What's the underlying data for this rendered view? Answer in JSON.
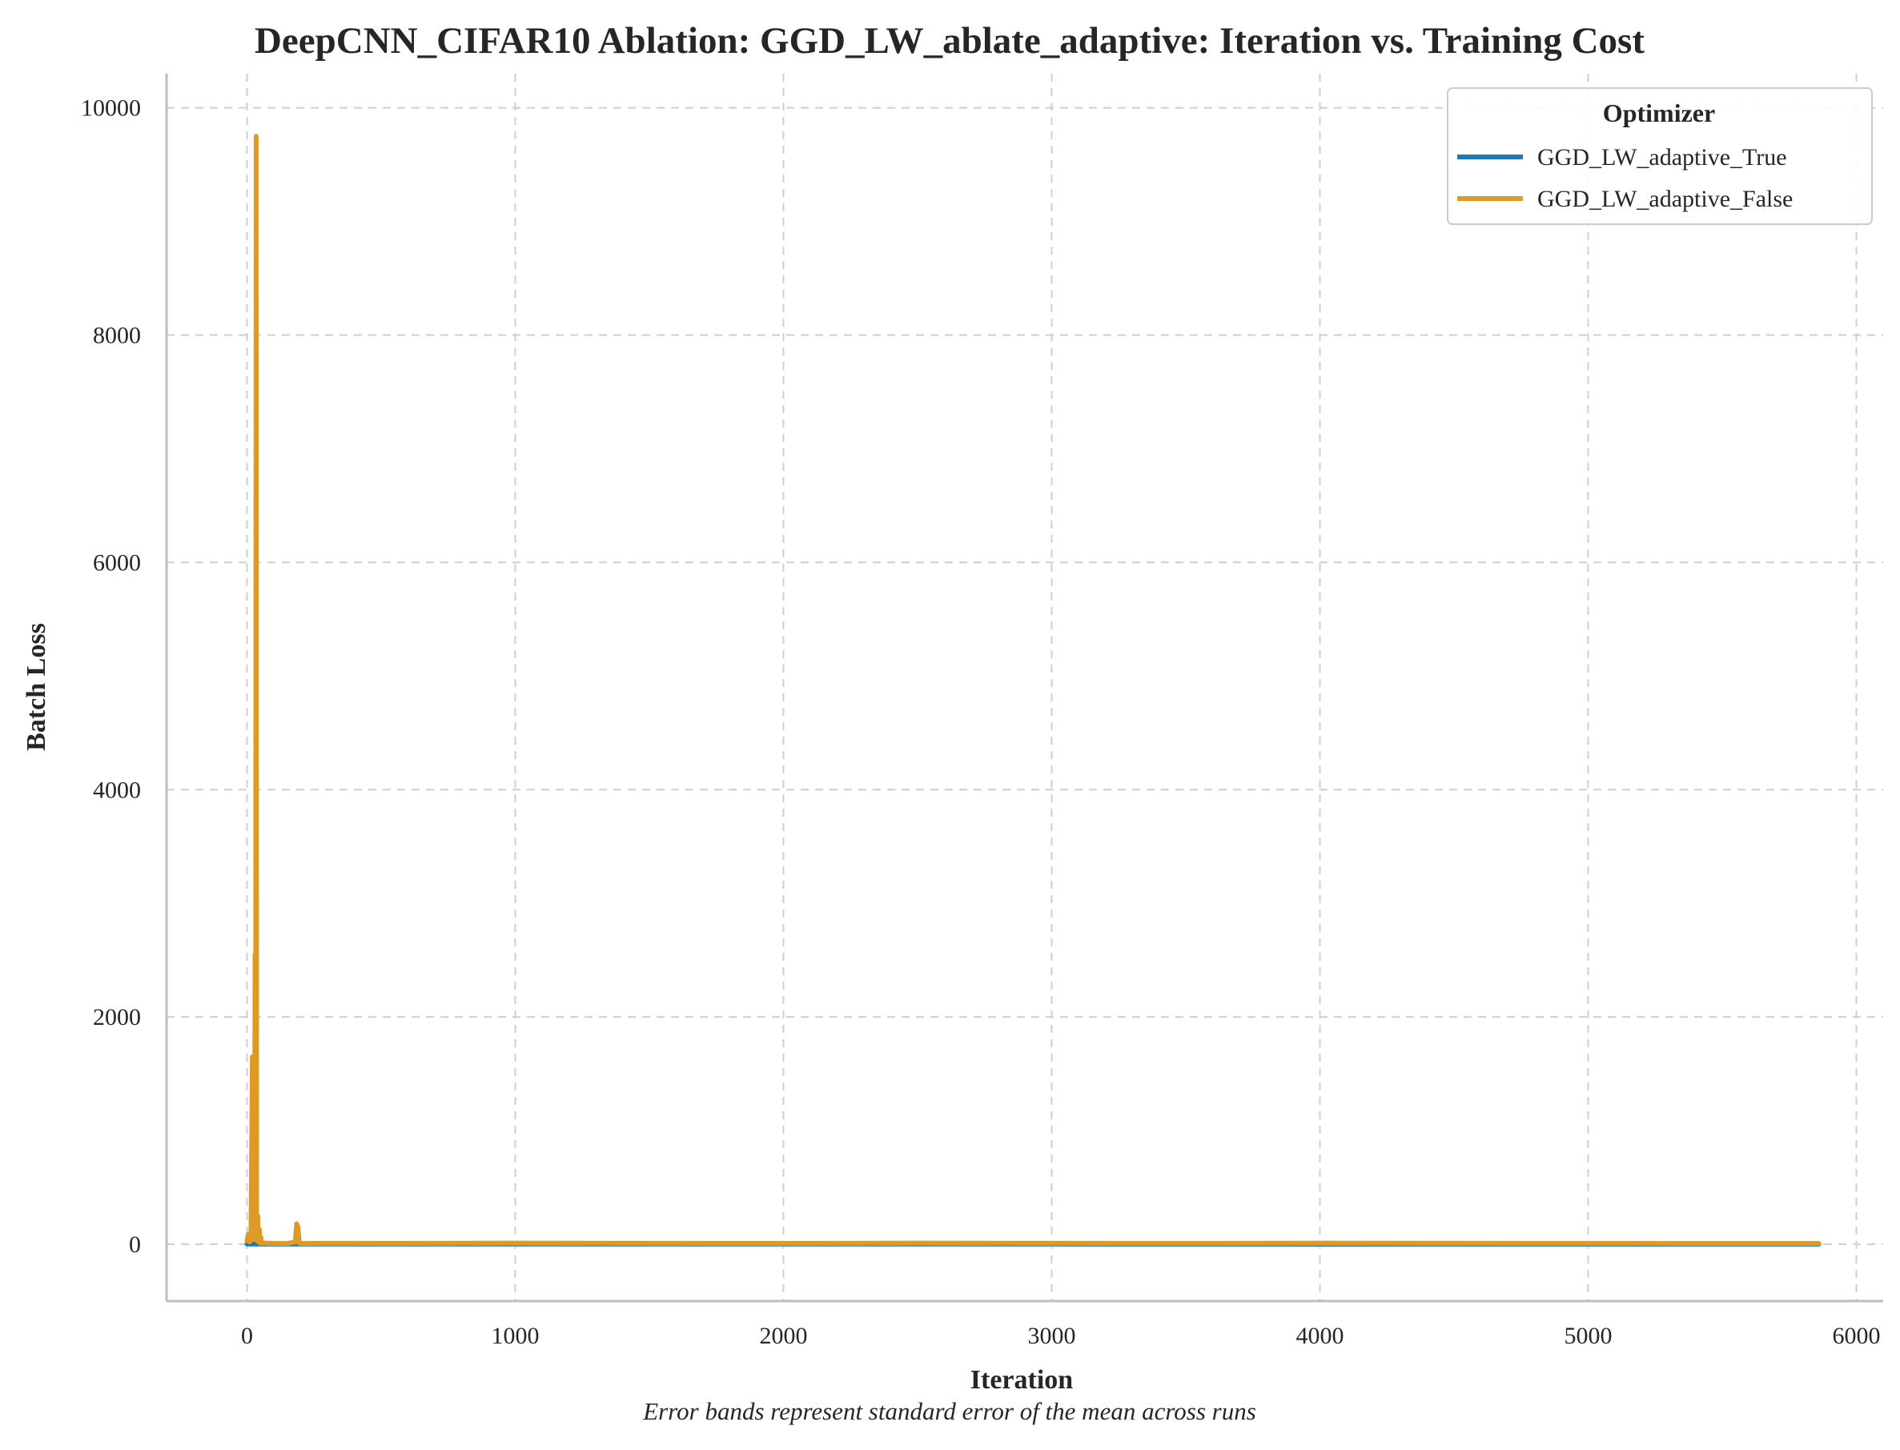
{
  "chart_data": {
    "type": "line",
    "title": "DeepCNN_CIFAR10 Ablation: GGD_LW_ablate_adaptive: Iteration vs. Training Cost",
    "xlabel": "Iteration",
    "ylabel": "Batch Loss",
    "caption": "Error bands represent standard error of the mean across runs",
    "xlim": [
      -300,
      6100
    ],
    "ylim": [
      -500,
      10300
    ],
    "xticks": [
      0,
      1000,
      2000,
      3000,
      4000,
      5000,
      6000
    ],
    "xtick_labels": [
      "0",
      "1000",
      "2000",
      "3000",
      "4000",
      "5000",
      "6000"
    ],
    "yticks": [
      0,
      2000,
      4000,
      6000,
      8000,
      10000
    ],
    "ytick_labels": [
      "0",
      "2000",
      "4000",
      "6000",
      "8000",
      "10000"
    ],
    "grid": true,
    "legend": {
      "title": "Optimizer",
      "position": "top-right"
    },
    "series": [
      {
        "name": "GGD_LW_adaptive_True",
        "color": "#1f77b4",
        "x": [
          0,
          50,
          200,
          1000,
          2000,
          3000,
          4000,
          5000,
          5860
        ],
        "y": [
          2.3,
          2.2,
          2.0,
          1.8,
          1.6,
          1.5,
          1.4,
          1.3,
          1.3
        ]
      },
      {
        "name": "GGD_LW_adaptive_False",
        "color": "#de9a26",
        "x": [
          0,
          5,
          10,
          15,
          20,
          25,
          28,
          30,
          32,
          34,
          36,
          38,
          40,
          42,
          44,
          46,
          48,
          50,
          52,
          54,
          56,
          58,
          60,
          70,
          80,
          100,
          150,
          180,
          185,
          190,
          195,
          200,
          220,
          300,
          500,
          1000,
          1500,
          2000,
          2500,
          3000,
          3500,
          4000,
          4500,
          5000,
          5500,
          5860
        ],
        "y": [
          30,
          90,
          20,
          120,
          1650,
          40,
          300,
          2550,
          60,
          9750,
          200,
          30,
          250,
          80,
          20,
          130,
          40,
          10,
          60,
          15,
          10,
          8,
          12,
          10,
          9,
          8,
          7,
          20,
          180,
          150,
          10,
          8,
          7,
          9,
          8,
          10,
          9,
          8,
          10,
          9,
          8,
          10,
          9,
          8,
          7,
          7
        ]
      }
    ]
  }
}
